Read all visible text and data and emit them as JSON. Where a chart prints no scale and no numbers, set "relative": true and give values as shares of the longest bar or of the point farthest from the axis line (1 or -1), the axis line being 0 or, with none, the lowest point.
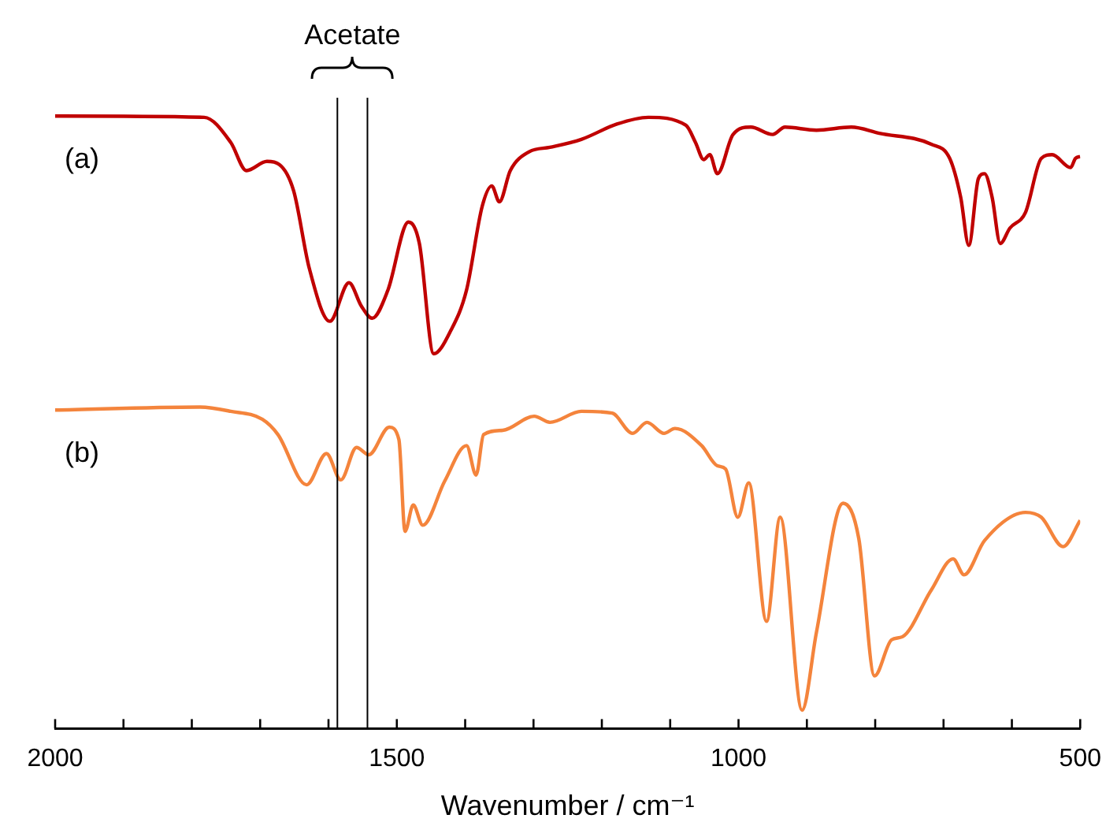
{
  "chart_data": {
    "type": "line",
    "xlabel": "Wavenumber / cm⁻¹",
    "relative": true,
    "legend": false,
    "grid": false,
    "marker": "none",
    "line_style": "solid",
    "xlim": [
      2000,
      500
    ],
    "xticks": [
      2000,
      {
        "value": 1900,
        "label": null
      },
      {
        "value": 1800,
        "label": null
      },
      {
        "value": 1700,
        "label": null
      },
      {
        "value": 1600,
        "label": null
      },
      1500,
      {
        "value": 1400,
        "label": null
      },
      {
        "value": 1300,
        "label": null
      },
      {
        "value": 1200,
        "label": null
      },
      {
        "value": 1100,
        "label": null
      },
      1000,
      {
        "value": 900,
        "label": null
      },
      {
        "value": 800,
        "label": null
      },
      {
        "value": 700,
        "label": null
      },
      {
        "value": 600,
        "label": null
      },
      500
    ],
    "annotations": [
      "Acetate"
    ],
    "ref_lines": [
      {
        "axis": "x",
        "value": 1587,
        "color": "#000000"
      },
      {
        "axis": "x",
        "value": 1543,
        "color": "#000000"
      }
    ],
    "series": [
      {
        "name": "(a)",
        "color": "#c00000",
        "x": [
          2000,
          1782,
          1743,
          1720,
          1690,
          1672,
          1651,
          1628,
          1598,
          1570,
          1552,
          1536,
          1513,
          1483,
          1467,
          1446,
          1421,
          1398,
          1375,
          1361,
          1350,
          1334,
          1306,
          1276,
          1230,
          1178,
          1132,
          1077,
          1063,
          1051,
          1042,
          1031,
          1008,
          982,
          950,
          932,
          886,
          835,
          794,
          718,
          691,
          675,
          663,
          649,
          640,
          629,
          617,
          603,
          580,
          557,
          541,
          514,
          507,
          500
        ],
        "values": [
          1,
          0.998,
          0.957,
          0.911,
          0.926,
          0.921,
          0.878,
          0.751,
          0.665,
          0.728,
          0.69,
          0.67,
          0.716,
          0.827,
          0.792,
          0.612,
          0.65,
          0.716,
          0.853,
          0.886,
          0.86,
          0.911,
          0.942,
          0.949,
          0.962,
          0.987,
          0.998,
          0.985,
          0.957,
          0.929,
          0.937,
          0.906,
          0.97,
          0.982,
          0.97,
          0.982,
          0.977,
          0.982,
          0.972,
          0.954,
          0.931,
          0.868,
          0.789,
          0.898,
          0.906,
          0.868,
          0.792,
          0.817,
          0.843,
          0.931,
          0.937,
          0.916,
          0.931,
          0.934
        ]
      },
      {
        "name": "(b)",
        "color": "#f4843c",
        "x": [
          2000,
          1789,
          1743,
          1697,
          1674,
          1632,
          1603,
          1582,
          1559,
          1541,
          1511,
          1497,
          1488,
          1476,
          1462,
          1430,
          1398,
          1384,
          1373,
          1345,
          1299,
          1276,
          1230,
          1185,
          1155,
          1134,
          1109,
          1093,
          1054,
          1031,
          1019,
          1001,
          985,
          959,
          939,
          907,
          886,
          847,
          824,
          801,
          776,
          760,
          718,
          686,
          670,
          640,
          580,
          557,
          525,
          500
        ],
        "values": [
          0.52,
          0.525,
          0.518,
          0.505,
          0.48,
          0.398,
          0.449,
          0.406,
          0.459,
          0.447,
          0.492,
          0.472,
          0.322,
          0.365,
          0.332,
          0.404,
          0.462,
          0.414,
          0.48,
          0.487,
          0.51,
          0.5,
          0.518,
          0.515,
          0.482,
          0.5,
          0.482,
          0.49,
          0.462,
          0.429,
          0.424,
          0.345,
          0.401,
          0.175,
          0.345,
          0.03,
          0.157,
          0.368,
          0.31,
          0.086,
          0.145,
          0.15,
          0.226,
          0.277,
          0.251,
          0.307,
          0.353,
          0.345,
          0.297,
          0.34
        ]
      }
    ]
  }
}
